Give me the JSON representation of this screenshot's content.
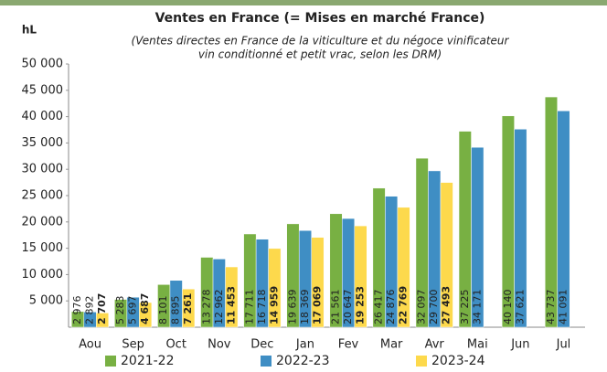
{
  "chart_data": {
    "type": "bar",
    "title": "Ventes en France (= Mises en marché France)",
    "subtitle": [
      "(Ventes directes en France de la viticulture et du négoce vinificateur",
      "vin conditionné et petit vrac, selon les DRM)"
    ],
    "y_label": "hL",
    "categories": [
      "Aou",
      "Sep",
      "Oct",
      "Nov",
      "Dec",
      "Jan",
      "Fev",
      "Mar",
      "Avr",
      "Mai",
      "Jun",
      "Jul"
    ],
    "series": [
      {
        "name": "2021-22",
        "color": "#78b043",
        "values": [
          2976,
          5283,
          8101,
          13278,
          17711,
          19639,
          21561,
          26417,
          32097,
          37225,
          40140,
          43737
        ],
        "value_labels": [
          "2 976",
          "5 283",
          "8 101",
          "13 278",
          "17 711",
          "19 639",
          "21 561",
          "26 417",
          "32 097",
          "37 225",
          "40 140",
          "43 737"
        ]
      },
      {
        "name": "2022-23",
        "color": "#3f8ec4",
        "values": [
          2892,
          5697,
          8895,
          12962,
          16718,
          18369,
          20647,
          24876,
          29700,
          34171,
          37621,
          41091
        ],
        "value_labels": [
          "2 892",
          "5 697",
          "8 895",
          "12 962",
          "16 718",
          "18 369",
          "20 647",
          "24 876",
          "29 700",
          "34 171",
          "37 621",
          "41 091"
        ]
      },
      {
        "name": "2023-24",
        "color": "#fdd94c",
        "bold_labels": true,
        "values": [
          2707,
          4687,
          7261,
          11453,
          14959,
          17069,
          19253,
          22769,
          27493,
          null,
          null,
          null
        ],
        "value_labels": [
          "2 707",
          "4 687",
          "7 261",
          "11 453",
          "14 959",
          "17 069",
          "19 253",
          "22 769",
          "27 493",
          null,
          null,
          null
        ]
      }
    ],
    "ylim": [
      0,
      50000
    ],
    "yticks": [
      {
        "value": 5000,
        "label": "5 000"
      },
      {
        "value": 10000,
        "label": "10 000"
      },
      {
        "value": 15000,
        "label": "15 000"
      },
      {
        "value": 20000,
        "label": "20 000"
      },
      {
        "value": 25000,
        "label": "25 000"
      },
      {
        "value": 30000,
        "label": "30 000"
      },
      {
        "value": 35000,
        "label": "35 000"
      },
      {
        "value": 40000,
        "label": "40 000"
      },
      {
        "value": 45000,
        "label": "45 000"
      },
      {
        "value": 50000,
        "label": "50 000"
      }
    ],
    "grid": false
  }
}
